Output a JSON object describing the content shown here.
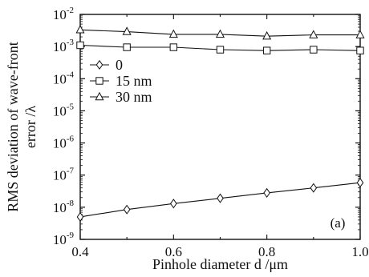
{
  "chart_data": {
    "type": "line",
    "xlabel": "Pinhole diameter d /μm",
    "ylabel_line1": "RMS deviation of wave-front",
    "ylabel_line2": "error /λ",
    "yscale": "log",
    "xlim": [
      0.4,
      1.0
    ],
    "ylim": [
      1e-09,
      0.01
    ],
    "x": [
      0.4,
      0.5,
      0.6,
      0.7,
      0.8,
      0.9,
      1.0
    ],
    "x_tick_labels": [
      "0.4",
      "0.6",
      "0.8",
      "1.0"
    ],
    "y_tick_exponents": [
      "-9",
      "-8",
      "-7",
      "-6",
      "-5",
      "-4",
      "-3",
      "-2"
    ],
    "y_tick_base": "10",
    "legend_position": "upper-left",
    "annotation": "(a)",
    "series": [
      {
        "name": "0",
        "marker": "diamond",
        "values": [
          5e-09,
          8.5e-09,
          1.3e-08,
          1.9e-08,
          2.8e-08,
          4e-08,
          5.8e-08
        ]
      },
      {
        "name": "15 nm",
        "marker": "square",
        "values": [
          0.0011,
          0.00095,
          0.00095,
          0.0008,
          0.00075,
          0.0008,
          0.00075
        ]
      },
      {
        "name": "30 nm",
        "marker": "triangle",
        "values": [
          0.0033,
          0.0029,
          0.0024,
          0.0024,
          0.0021,
          0.0023,
          0.0023
        ]
      }
    ]
  }
}
